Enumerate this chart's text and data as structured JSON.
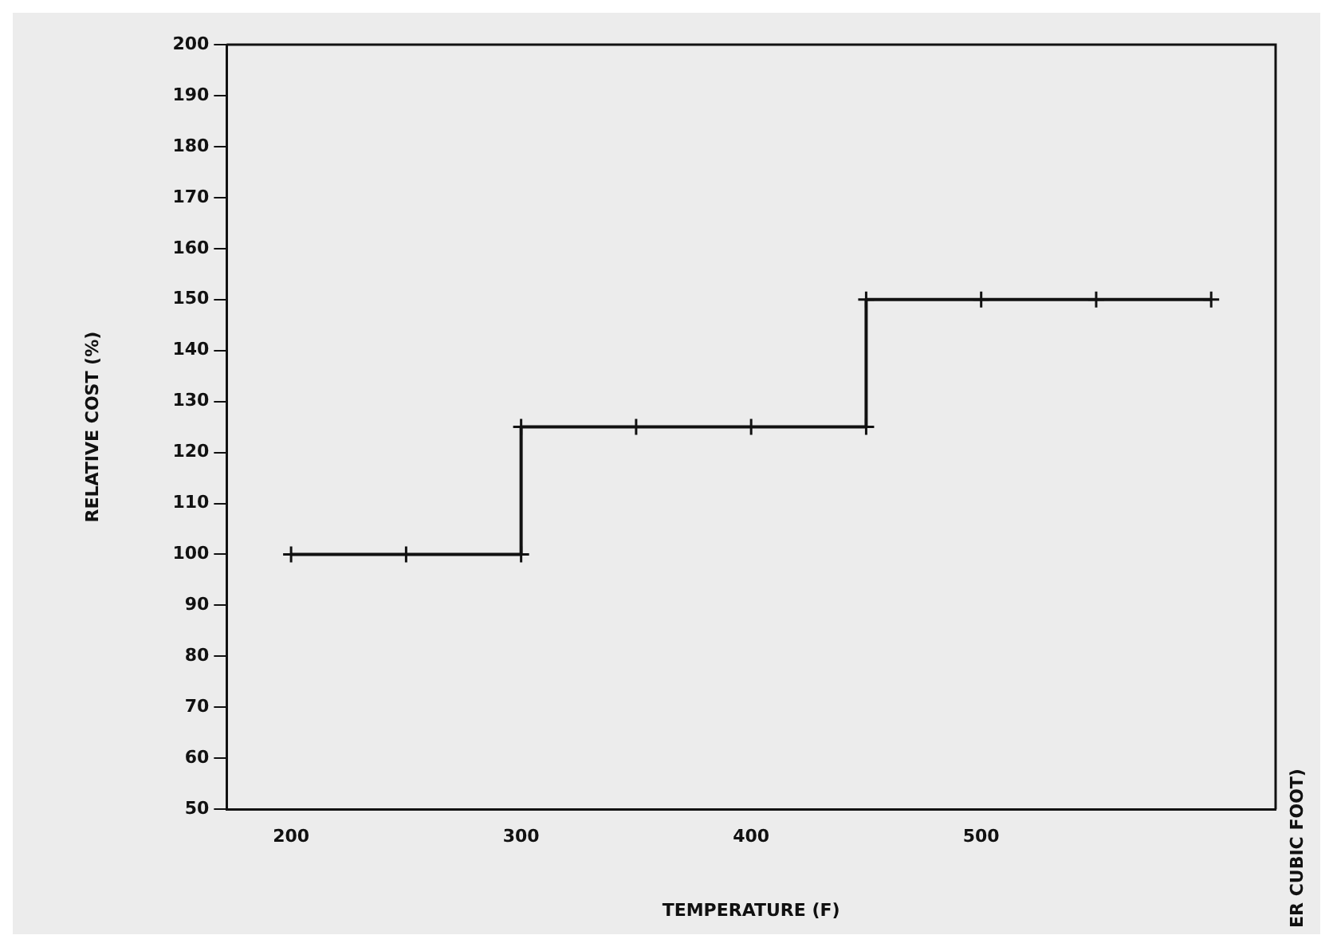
{
  "chart_data": {
    "type": "line",
    "xlabel": "TEMPERATURE (F)",
    "ylabel": "RELATIVE COST (%)",
    "x": [
      200,
      250,
      300,
      300,
      350,
      400,
      450,
      450,
      500,
      550,
      600
    ],
    "values": [
      100,
      100,
      100,
      125,
      125,
      125,
      125,
      150,
      150,
      150,
      150
    ],
    "color": "#111111",
    "marker": "cross",
    "line_style": "solid",
    "xlim": [
      172,
      628
    ],
    "xticks": [
      200,
      300,
      400,
      500
    ],
    "ylim": [
      50,
      200
    ],
    "yticks": [
      50,
      60,
      70,
      80,
      90,
      100,
      110,
      120,
      130,
      140,
      150,
      160,
      170,
      180,
      190,
      200
    ],
    "grid": false,
    "legend": false,
    "annotations": [
      "ER CUBIC FOOT)"
    ]
  }
}
